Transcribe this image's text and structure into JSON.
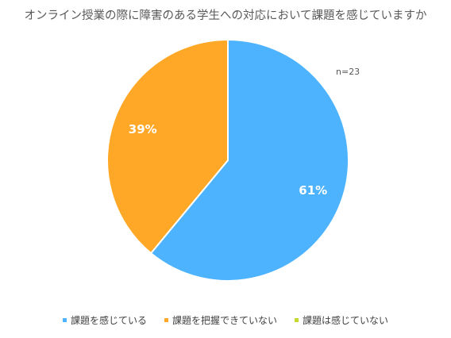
{
  "chart_data": {
    "type": "pie",
    "title": "オンライン授業の際に障害のある学生への対応において課題を感じていますか",
    "note": "n=23",
    "slices": [
      {
        "name": "課題を感じている",
        "value": 61,
        "label": "61%",
        "color": "#4DB3FF"
      },
      {
        "name": "課題を把握できていない",
        "value": 39,
        "label": "39%",
        "color": "#FFA726"
      },
      {
        "name": "課題は感じていない",
        "value": 0,
        "label": "",
        "color": "#C5D92C"
      }
    ],
    "legend_position": "bottom"
  }
}
